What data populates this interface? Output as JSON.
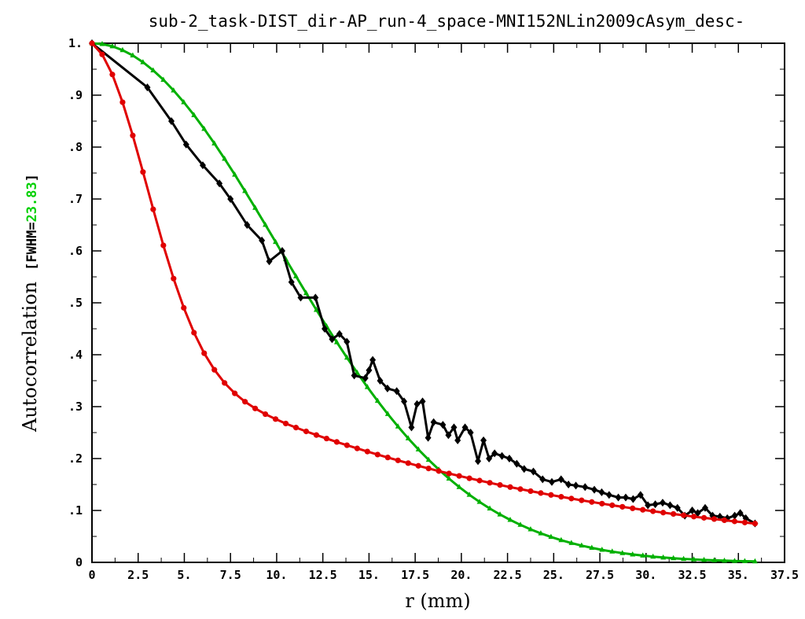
{
  "chart_data": {
    "type": "line",
    "title": "sub-2_task-DIST_dir-AP_run-4_space-MNI152NLin2009cAsym_desc-",
    "xlabel": "r (mm)",
    "ylabel": "Autocorrelation",
    "fwhm_prefix": "[FWHM=",
    "fwhm_value": "23.83",
    "fwhm_suffix": "]",
    "xlim": [
      0,
      37.5
    ],
    "ylim": [
      0,
      1.0
    ],
    "xticks": [
      {
        "v": 0,
        "label": "0"
      },
      {
        "v": 2.5,
        "label": "2.5"
      },
      {
        "v": 5,
        "label": "5."
      },
      {
        "v": 7.5,
        "label": "7.5"
      },
      {
        "v": 10,
        "label": "10."
      },
      {
        "v": 12.5,
        "label": "12.5"
      },
      {
        "v": 15,
        "label": "15."
      },
      {
        "v": 17.5,
        "label": "17.5"
      },
      {
        "v": 20,
        "label": "20."
      },
      {
        "v": 22.5,
        "label": "22.5"
      },
      {
        "v": 25,
        "label": "25."
      },
      {
        "v": 27.5,
        "label": "27.5"
      },
      {
        "v": 30,
        "label": "30."
      },
      {
        "v": 32.5,
        "label": "32.5"
      },
      {
        "v": 35,
        "label": "35."
      },
      {
        "v": 37.5,
        "label": "37.5"
      }
    ],
    "yticks": [
      {
        "v": 0,
        "label": "0"
      },
      {
        "v": 0.1,
        "label": ".1"
      },
      {
        "v": 0.2,
        "label": ".2"
      },
      {
        "v": 0.3,
        "label": ".3"
      },
      {
        "v": 0.4,
        "label": ".4"
      },
      {
        "v": 0.5,
        "label": ".5"
      },
      {
        "v": 0.6,
        "label": ".6"
      },
      {
        "v": 0.7,
        "label": ".7"
      },
      {
        "v": 0.8,
        "label": ".8"
      },
      {
        "v": 0.9,
        "label": ".9"
      },
      {
        "v": 1.0,
        "label": "1."
      }
    ],
    "colors": {
      "data": "#000000",
      "fit": "#e00000",
      "gaussian": "#00b000",
      "fwhm_value": "#00d000"
    },
    "series": [
      {
        "key": "data",
        "marker": "diamond",
        "x": [
          0,
          3.0,
          4.3,
          5.1,
          6.0,
          6.9,
          7.5,
          8.4,
          9.2,
          9.6,
          10.3,
          10.8,
          11.3,
          12.1,
          12.6,
          13.0,
          13.4,
          13.8,
          14.2,
          14.8,
          15.0,
          15.2,
          15.6,
          16.0,
          16.5,
          16.9,
          17.3,
          17.6,
          17.9,
          18.2,
          18.5,
          19.0,
          19.3,
          19.6,
          19.8,
          20.2,
          20.5,
          20.9,
          21.2,
          21.5,
          21.8,
          22.2,
          22.6,
          23.0,
          23.4,
          23.9,
          24.4,
          24.9,
          25.4,
          25.8,
          26.2,
          26.7,
          27.2,
          27.6,
          28.0,
          28.5,
          28.9,
          29.3,
          29.7,
          30.1,
          30.5,
          30.9,
          31.3,
          31.7,
          32.1,
          32.5,
          32.8,
          33.2,
          33.6,
          34.0,
          34.4,
          34.8,
          35.1,
          35.4,
          35.9
        ],
        "y": [
          1.0,
          0.915,
          0.85,
          0.805,
          0.765,
          0.73,
          0.7,
          0.65,
          0.62,
          0.58,
          0.6,
          0.54,
          0.51,
          0.51,
          0.45,
          0.43,
          0.44,
          0.425,
          0.36,
          0.355,
          0.37,
          0.39,
          0.35,
          0.335,
          0.33,
          0.31,
          0.26,
          0.305,
          0.31,
          0.24,
          0.27,
          0.265,
          0.245,
          0.26,
          0.235,
          0.26,
          0.25,
          0.195,
          0.235,
          0.2,
          0.21,
          0.205,
          0.2,
          0.19,
          0.18,
          0.175,
          0.16,
          0.155,
          0.16,
          0.15,
          0.148,
          0.145,
          0.14,
          0.135,
          0.13,
          0.125,
          0.125,
          0.122,
          0.13,
          0.11,
          0.112,
          0.115,
          0.11,
          0.105,
          0.09,
          0.1,
          0.095,
          0.105,
          0.09,
          0.088,
          0.085,
          0.09,
          0.095,
          0.085,
          0.075
        ]
      },
      {
        "key": "fit",
        "marker": "circle",
        "model": "mixed-acf",
        "params": {
          "a": 0.55,
          "b": 3.0,
          "c": 20.0
        },
        "x_start": 0,
        "x_end": 35.9,
        "n": 66
      },
      {
        "key": "gaussian",
        "marker": "triangle",
        "model": "gaussian",
        "params": {
          "fwhm": 23.83
        },
        "x_start": 0,
        "x_end": 35.9,
        "n": 66
      }
    ]
  }
}
